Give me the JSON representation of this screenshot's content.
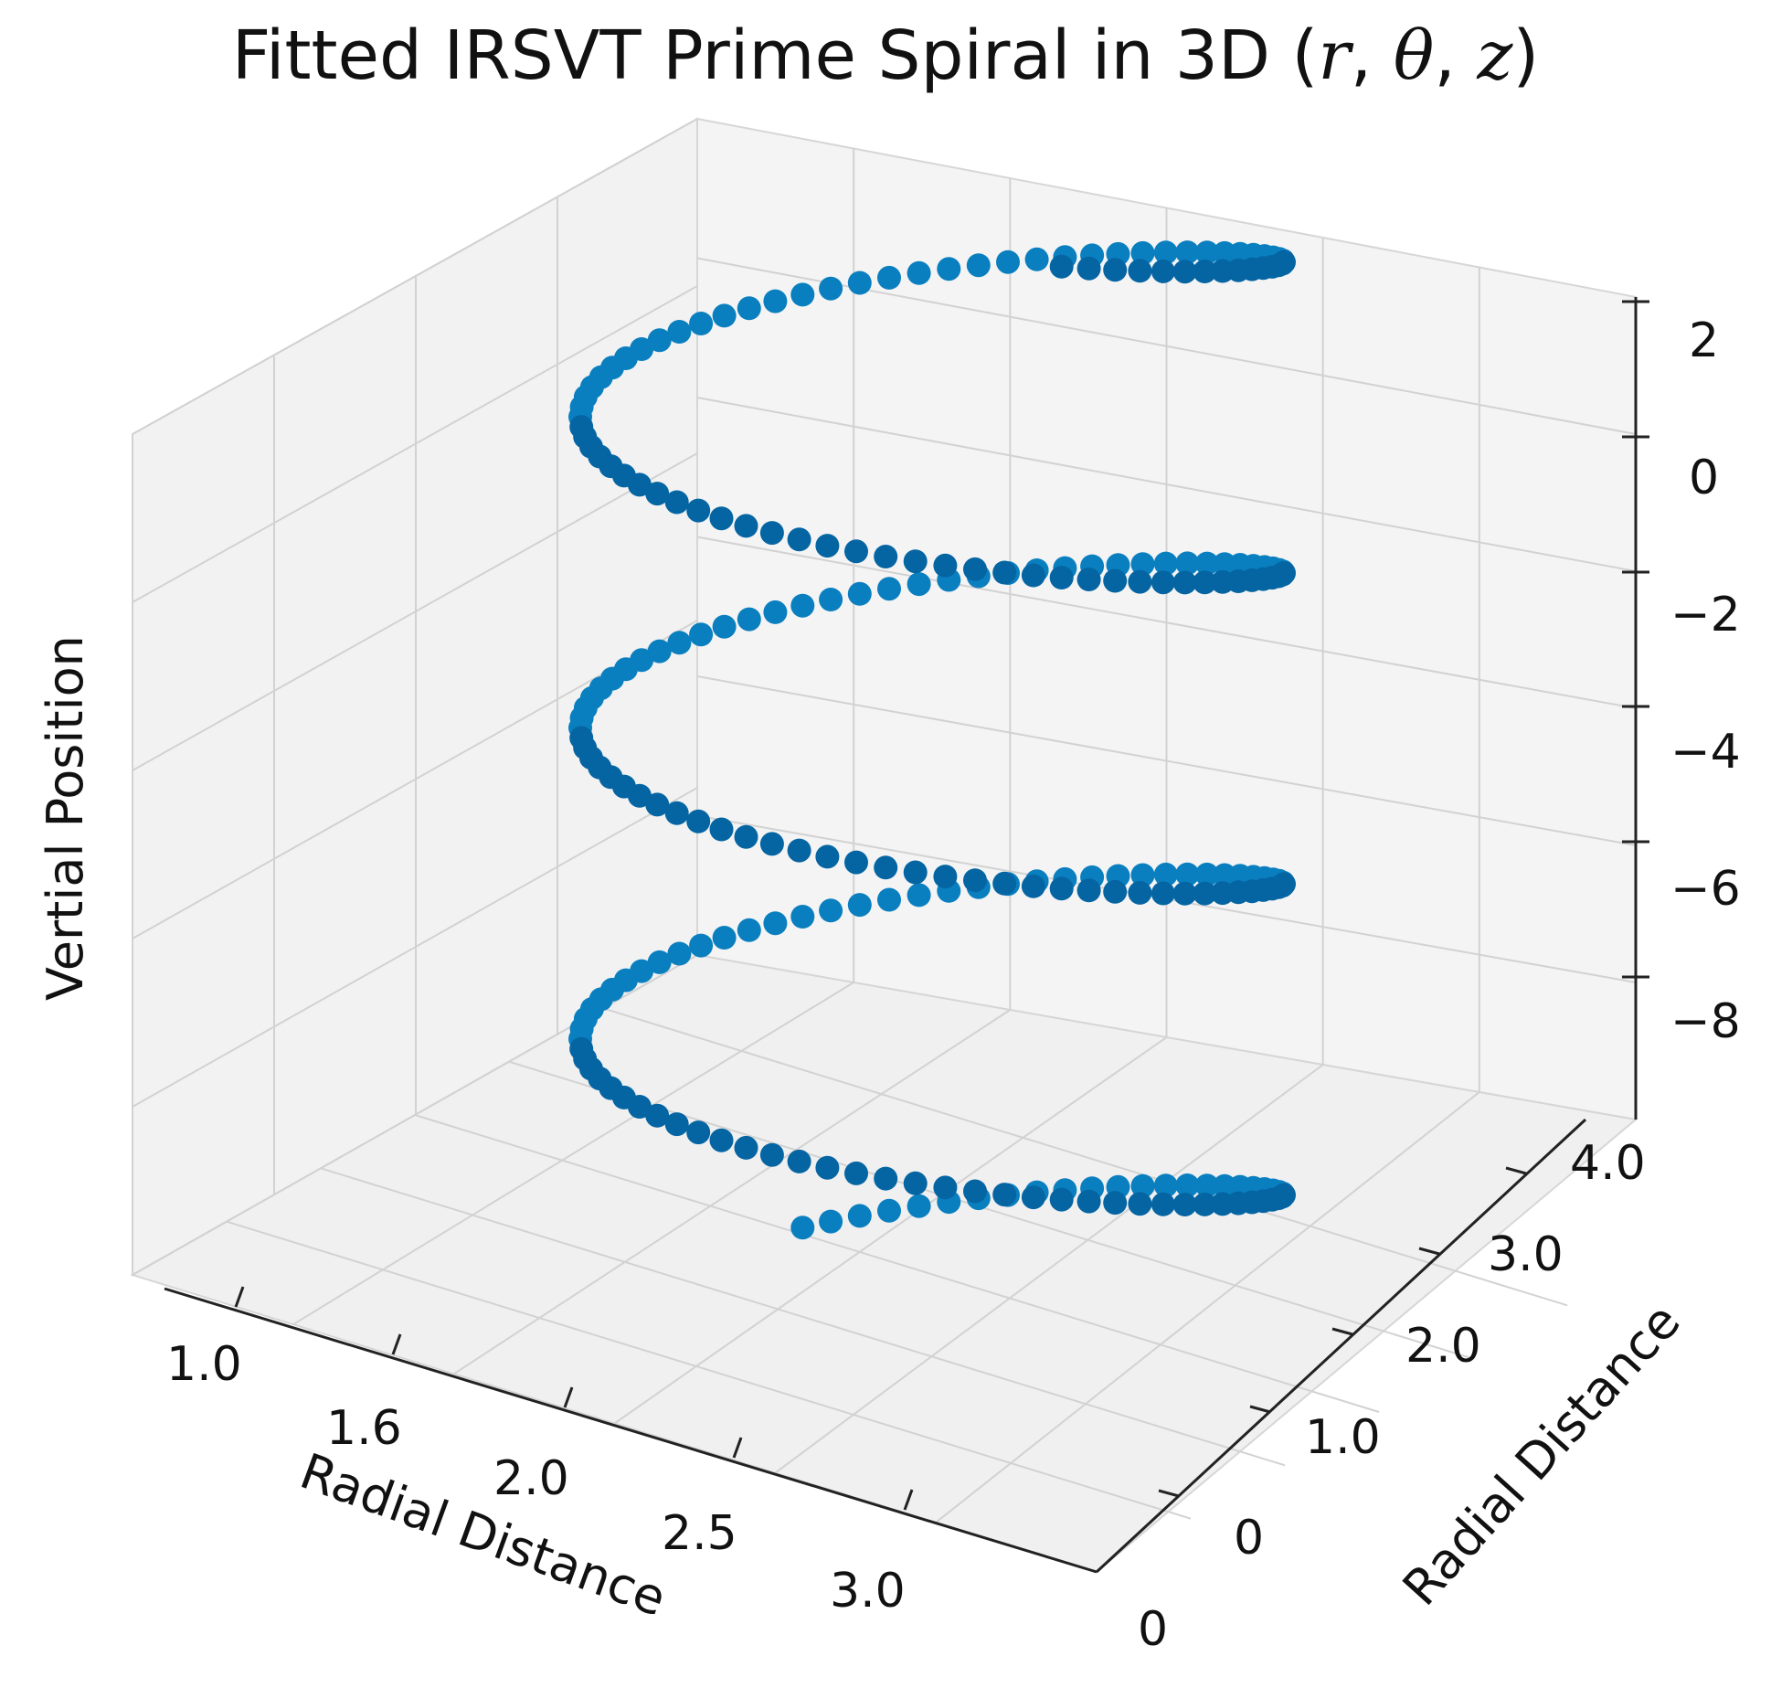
{
  "chart_data": {
    "type": "scatter",
    "projection": "3d",
    "title": {
      "main": "Fitted IRSVT Prime Spiral in 3D (",
      "vars": [
        "r",
        "θ",
        "z"
      ],
      "separator": ", ",
      "close": ")"
    },
    "xlabel": "Radial Distance",
    "ylabel": "Radial Distance",
    "zlabel": "Vertial Position",
    "x_ticks": [
      "1.0",
      "1.6",
      "2.0",
      "2.5",
      "3.0"
    ],
    "y_ticks": [
      "0",
      "0",
      "1.0",
      "2.0",
      "3.0",
      "4.0"
    ],
    "z_ticks": [
      "2",
      "0",
      "−2",
      "−4",
      "−6",
      "−8"
    ],
    "grid": true,
    "marker_color": "#0a7fbf",
    "marker_color_dark": "#0565a3",
    "pane_color": "#f2f2f2",
    "series": [
      {
        "n_points": 260,
        "turns": 3.5,
        "z_range": [
          -9.3,
          2.0
        ],
        "description_radius": "constant helix radius around the vertical axis"
      }
    ]
  }
}
